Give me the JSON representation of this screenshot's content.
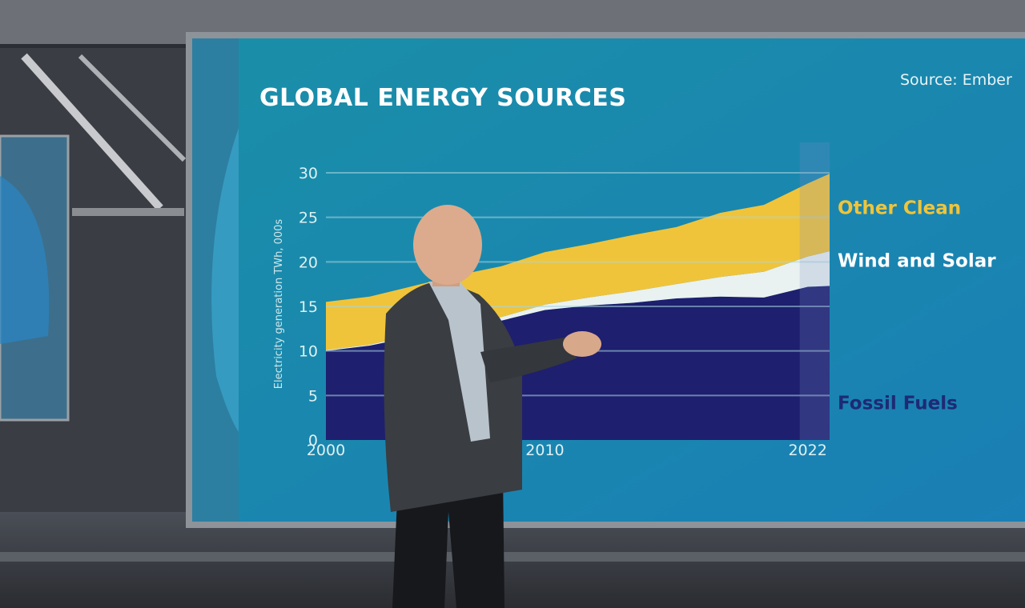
{
  "colors": {
    "fossil": "#1e1f6e",
    "wind_solar": "#e9f2f0",
    "other_clean": "#f0c43a",
    "screen": "#1c95ab",
    "fossil_label": "#1e2a74"
  },
  "chart_data": {
    "type": "area",
    "title": "GLOBAL ENERGY SOURCES",
    "source": "Source: Ember",
    "ylabel": "Electricity generation TWh, 000s",
    "xlabel": "",
    "x": [
      2000,
      2002,
      2004,
      2006,
      2008,
      2010,
      2012,
      2014,
      2016,
      2018,
      2020,
      2022,
      2023
    ],
    "xlim": [
      2000,
      2023
    ],
    "ylim": [
      0,
      30
    ],
    "y_ticks": [
      "0",
      "5",
      "10",
      "15",
      "20",
      "25",
      "30"
    ],
    "x_tick_labels": [
      {
        "x": 2000,
        "label": "2000"
      },
      {
        "x": 2010,
        "label": "2010"
      },
      {
        "x": 2022,
        "label": "2022"
      }
    ],
    "highlight_from": 2022,
    "stacked": true,
    "grid": true,
    "series": [
      {
        "name": "Fossil Fuels",
        "values": [
          10.0,
          10.6,
          11.6,
          12.6,
          13.4,
          14.6,
          15.1,
          15.4,
          15.9,
          16.1,
          16.0,
          17.2,
          17.3
        ]
      },
      {
        "name": "Wind and Solar",
        "values": [
          0.1,
          0.1,
          0.2,
          0.3,
          0.4,
          0.6,
          0.9,
          1.3,
          1.6,
          2.2,
          2.9,
          3.4,
          3.9
        ]
      },
      {
        "name": "Other Clean",
        "values": [
          5.4,
          5.4,
          5.5,
          5.6,
          5.7,
          5.9,
          6.0,
          6.3,
          6.4,
          7.2,
          7.5,
          8.2,
          8.7
        ]
      }
    ]
  }
}
